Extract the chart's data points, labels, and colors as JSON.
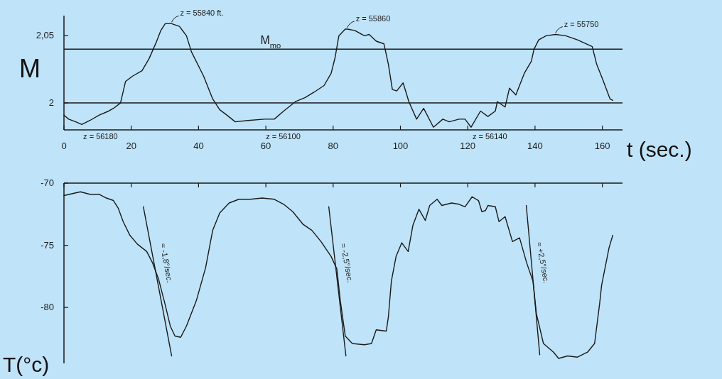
{
  "chart_data": [
    {
      "type": "line",
      "ylabel": "M",
      "xlabel": "t (sec.)",
      "xlim": [
        0,
        166
      ],
      "xticks": [
        0,
        20,
        40,
        60,
        80,
        100,
        120,
        140,
        160
      ],
      "ylim": [
        1.98,
        2.065
      ],
      "yticks": [
        2,
        {
          "value": 2.05,
          "label": "2,05"
        }
      ],
      "ref_lines": [
        {
          "axis": "y",
          "value": 2
        },
        {
          "axis": "y",
          "value": 2.04,
          "label": "M$_{mo}$"
        }
      ],
      "annotations": [
        {
          "text": "z = 55840 ft.",
          "x": 32,
          "y": 2.059
        },
        {
          "text": "z = 56180",
          "x": 5.3,
          "y": 1.984
        },
        {
          "text": "z = 56100",
          "x": 59.6,
          "y": 1.988
        },
        {
          "text": "z = 55860",
          "x": 84.2,
          "y": 2.055
        },
        {
          "text": "z = 56140",
          "x": 121,
          "y": 1.982
        },
        {
          "text": "z = 55750",
          "x": 146.1,
          "y": 2.051
        }
      ],
      "series": [
        {
          "color": "#1a1a1a",
          "x": [
            0,
            1.4,
            3.5,
            5.3,
            7.7,
            10.5,
            13.3,
            14.7,
            16.8,
            18.3,
            20.4,
            23.2,
            25.3,
            27.4,
            28.8,
            30.1,
            32,
            34.3,
            36.4,
            37.9,
            41.5,
            44.2,
            46.3,
            48.4,
            50.9,
            54.7,
            59.6,
            62.5,
            65.3,
            68.8,
            71.6,
            74.3,
            77.3,
            79.4,
            80.6,
            81.7,
            83.6,
            84.2,
            86.4,
            89.3,
            90.7,
            92.8,
            95.1,
            96.4,
            97.6,
            98.9,
            100.8,
            102.5,
            104.8,
            106.9,
            109.8,
            112.6,
            114.5,
            117.4,
            119.2,
            121,
            123.8,
            126,
            128.2,
            128.8,
            131.1,
            132.4,
            134.3,
            136.8,
            138.9,
            139.7,
            141.1,
            143.3,
            146.1,
            149.1,
            152.6,
            157,
            158.3,
            160.2,
            162.3,
            163.1
          ],
          "values": [
            1.991,
            1.988,
            1.986,
            1.984,
            1.987,
            1.991,
            1.994,
            1.996,
            2.0,
            2.016,
            2.02,
            2.024,
            2.033,
            2.045,
            2.054,
            2.059,
            2.059,
            2.057,
            2.05,
            2.038,
            2.02,
            2.003,
            1.995,
            1.991,
            1.986,
            1.987,
            1.988,
            1.988,
            1.994,
            2.001,
            2.004,
            2.008,
            2.013,
            2.022,
            2.034,
            2.05,
            2.055,
            2.055,
            2.054,
            2.05,
            2.051,
            2.046,
            2.044,
            2.029,
            2.01,
            2.009,
            2.015,
            2.001,
            1.988,
            1.996,
            1.982,
            1.988,
            1.986,
            1.988,
            1.988,
            1.982,
            1.994,
            1.99,
            1.994,
            2.001,
            1.997,
            2.011,
            2.006,
            2.022,
            2.031,
            2.04,
            2.047,
            2.05,
            2.051,
            2.05,
            2.047,
            2.042,
            2.029,
            2.017,
            2.003,
            2.002
          ]
        }
      ]
    },
    {
      "type": "line",
      "ylabel": "T(°c)",
      "xlim": [
        0,
        166
      ],
      "xticks": [
        0,
        20,
        40,
        60,
        80,
        100,
        120,
        140,
        160
      ],
      "ylim": [
        -84.5,
        -70
      ],
      "yticks": [
        -80,
        -75,
        -70
      ],
      "tick_labels": "y",
      "annotations": [
        "≈ -1,8°/sec.",
        "≈ -2,5°/sec.",
        "≈ +2,5°/sec."
      ],
      "series": [
        {
          "color": "#1a1a1a",
          "x": [
            0,
            4.9,
            7.7,
            10.5,
            12.6,
            14.7,
            16.1,
            17.6,
            19.6,
            21.8,
            24.6,
            26.3,
            28.1,
            30.1,
            31.6,
            33,
            34.7,
            36.4,
            39.4,
            42.1,
            44.2,
            46.3,
            49.1,
            52,
            55.4,
            58.9,
            62.5,
            65.3,
            68,
            71,
            73.7,
            76.4,
            79.4,
            81.1,
            82.1,
            83.6,
            85.7,
            89.3,
            91.4,
            92.8,
            95.8,
            96.4,
            97.3,
            98.7,
            100.4,
            102.3,
            103.7,
            105.5,
            107.4,
            108.7,
            110.9,
            112.3,
            115.2,
            117.4,
            119.2,
            121.3,
            123.2,
            124.2,
            125.3,
            126,
            128.2,
            129.3,
            131.1,
            133.3,
            135.4,
            137.5,
            139.4,
            140.4,
            142.5,
            145.5,
            147,
            149.7,
            152.6,
            155.6,
            157.7,
            159.2,
            159.8,
            162,
            163.1
          ],
          "values": [
            -71.0,
            -70.7,
            -70.9,
            -70.9,
            -71.2,
            -71.4,
            -72.0,
            -73.1,
            -74.2,
            -74.9,
            -75.5,
            -76.4,
            -77.7,
            -79.8,
            -81.5,
            -82.3,
            -82.4,
            -81.5,
            -79.4,
            -76.8,
            -73.8,
            -72.4,
            -71.6,
            -71.3,
            -71.3,
            -71.2,
            -71.3,
            -71.7,
            -72.3,
            -73.3,
            -73.8,
            -74.7,
            -75.9,
            -76.9,
            -79.4,
            -82.3,
            -82.9,
            -83.0,
            -82.9,
            -81.8,
            -81.9,
            -80.8,
            -77.9,
            -75.9,
            -74.8,
            -75.5,
            -73.4,
            -72.1,
            -73.0,
            -71.8,
            -71.3,
            -71.8,
            -71.6,
            -71.7,
            -71.9,
            -71.1,
            -71.4,
            -72.3,
            -72.2,
            -71.8,
            -71.9,
            -73.1,
            -72.7,
            -74.7,
            -74.4,
            -76.4,
            -77.9,
            -80.5,
            -82.9,
            -83.6,
            -84.1,
            -83.9,
            -84.0,
            -83.6,
            -82.9,
            -79.7,
            -78.2,
            -75.2,
            -74.2
          ]
        },
        {
          "type": "line",
          "color": "#1a1a1a",
          "x": [
            23.6,
            32
          ],
          "values": [
            -71.9,
            -83.9
          ]
        },
        {
          "type": "line",
          "color": "#1a1a1a",
          "x": [
            78.7,
            83.8
          ],
          "values": [
            -71.9,
            -83.9
          ]
        },
        {
          "type": "line",
          "color": "#1a1a1a",
          "x": [
            137.4,
            141.4
          ],
          "values": [
            -71.8,
            -83.8
          ]
        }
      ]
    }
  ]
}
